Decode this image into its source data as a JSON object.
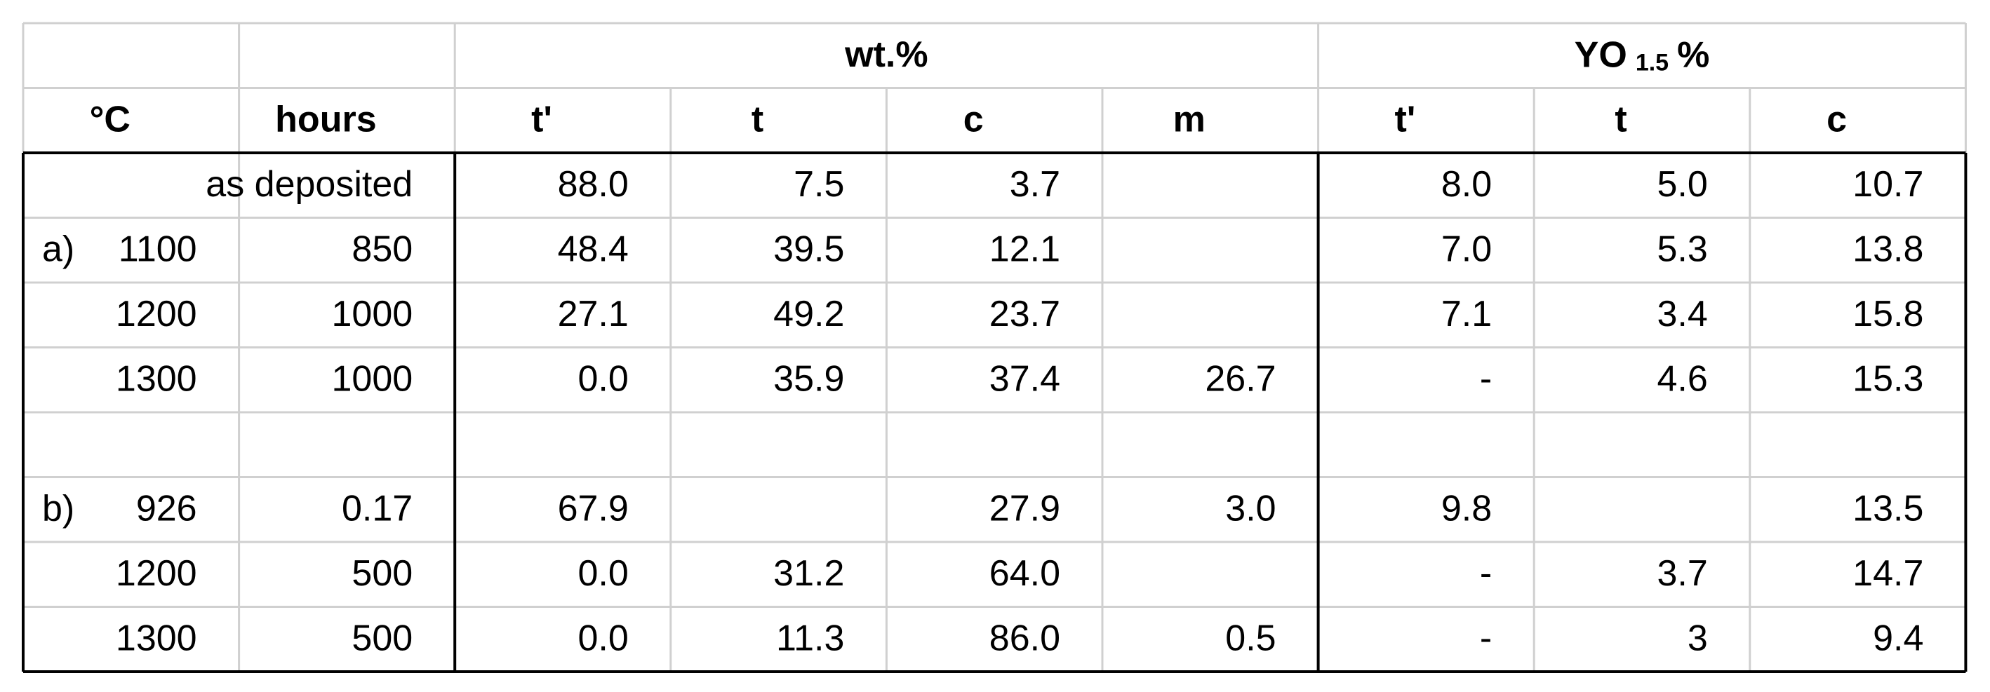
{
  "table": {
    "group_headers": {
      "wt": "wt.%",
      "yo": {
        "text": "YO",
        "sub": "1.5",
        "suffix": "%"
      }
    },
    "column_headers": [
      "°C",
      "hours",
      "t'",
      "t",
      "c",
      "m",
      "t'",
      "t",
      "c"
    ],
    "rows": [
      {
        "label": "as deposited",
        "group": null,
        "temp": null,
        "hours": null,
        "cells": [
          "88.0",
          "7.5",
          "3.7",
          null,
          "8.0",
          "5.0",
          "10.7"
        ]
      },
      {
        "label": null,
        "group": "a)",
        "temp": "1100",
        "hours": "850",
        "cells": [
          "48.4",
          "39.5",
          "12.1",
          null,
          "7.0",
          "5.3",
          "13.8"
        ]
      },
      {
        "label": null,
        "group": null,
        "temp": "1200",
        "hours": "1000",
        "cells": [
          "27.1",
          "49.2",
          "23.7",
          null,
          "7.1",
          "3.4",
          "15.8"
        ]
      },
      {
        "label": null,
        "group": null,
        "temp": "1300",
        "hours": "1000",
        "cells": [
          "0.0",
          "35.9",
          "37.4",
          "26.7",
          "-",
          "4.6",
          "15.3"
        ]
      },
      null,
      {
        "label": null,
        "group": "b)",
        "temp": "926",
        "hours": "0.17",
        "cells": [
          "67.9",
          null,
          "27.9",
          "3.0",
          "9.8",
          null,
          "13.5"
        ]
      },
      {
        "label": null,
        "group": null,
        "temp": "1200",
        "hours": "500",
        "cells": [
          "0.0",
          "31.2",
          "64.0",
          null,
          "-",
          "3.7",
          "14.7"
        ]
      },
      {
        "label": null,
        "group": null,
        "temp": "1300",
        "hours": "500",
        "cells": [
          "0.0",
          "11.3",
          "86.0",
          "0.5",
          "-",
          "3",
          "9.4"
        ]
      }
    ]
  }
}
